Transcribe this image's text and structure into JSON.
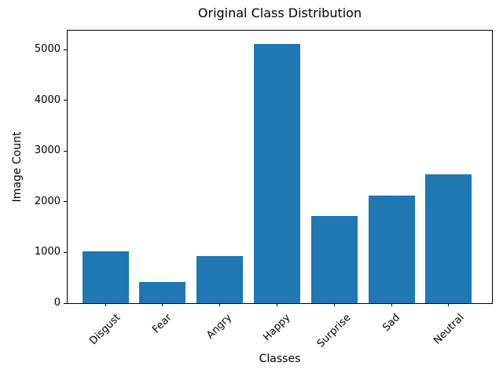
{
  "chart_data": {
    "type": "bar",
    "title": "Original Class Distribution",
    "xlabel": "Classes",
    "ylabel": "Image Count",
    "categories": [
      "Disgust",
      "Fear",
      "Angry",
      "Happy",
      "Surprise",
      "Sad",
      "Neutral"
    ],
    "values": [
      1020,
      425,
      935,
      5120,
      1715,
      2130,
      2535
    ],
    "yticks": [
      0,
      1000,
      2000,
      3000,
      4000,
      5000
    ],
    "ylim": [
      0,
      5376
    ],
    "xtick_rotation_deg": 45,
    "bar_color": "#1f77b4",
    "axis_color": "#000000",
    "background_color": "#ffffff",
    "grid": false,
    "legend": "none"
  }
}
